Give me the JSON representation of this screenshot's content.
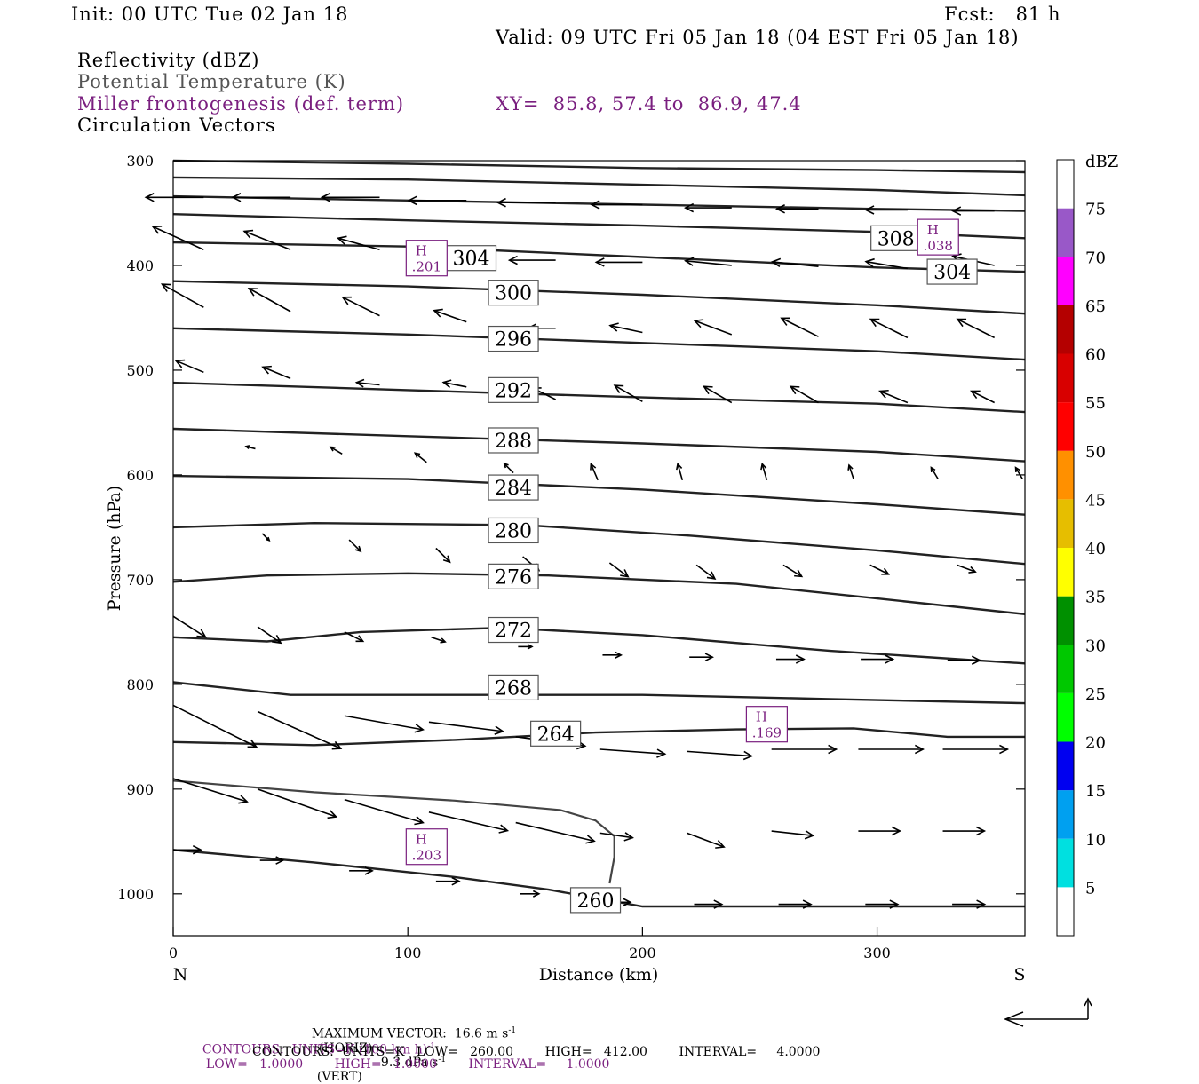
{
  "header": {
    "init": "Init: 00 UTC Tue 02 Jan 18",
    "fcst": "Fcst:   81 h",
    "valid": "Valid: 09 UTC Fri 05 Jan 18 (04 EST Fri 05 Jan 18)",
    "fields": [
      "Reflectivity (dBZ)",
      "Potential Temperature (K)",
      "Miller frontogenesis (def. term)",
      "Circulation Vectors"
    ],
    "xy": "XY=  85.8, 57.4 to  86.9, 47.4"
  },
  "colors": {
    "accent_purple": "#7a1f7f",
    "theta_gray": "#555555"
  },
  "chart_data": {
    "type": "line",
    "title": "",
    "xlabel": "Distance (km)",
    "ylabel": "Pressure (hPa)",
    "x_range": [
      0,
      363
    ],
    "y_range": [
      1040,
      300
    ],
    "y_scale": "linear",
    "x_ticks": [
      0,
      100,
      200,
      300
    ],
    "y_ticks": [
      300,
      400,
      500,
      600,
      700,
      800,
      900,
      1000
    ],
    "x_end_labels": {
      "left": "N",
      "right": "S"
    },
    "grid": false,
    "isentropes": [
      {
        "theta": 260,
        "points": [
          [
            0,
            958
          ],
          [
            60,
            970
          ],
          [
            120,
            984
          ],
          [
            160,
            996
          ],
          [
            200,
            1012
          ],
          [
            240,
            1012
          ],
          [
            300,
            1012
          ],
          [
            363,
            1012
          ]
        ]
      },
      {
        "theta": 264,
        "points": [
          [
            0,
            855
          ],
          [
            60,
            858
          ],
          [
            120,
            853
          ],
          [
            180,
            846
          ],
          [
            240,
            843
          ],
          [
            290,
            842
          ],
          [
            330,
            850
          ],
          [
            363,
            850
          ]
        ]
      },
      {
        "theta": 268,
        "points": [
          [
            0,
            798
          ],
          [
            50,
            810
          ],
          [
            120,
            810
          ],
          [
            200,
            810
          ],
          [
            280,
            814
          ],
          [
            363,
            818
          ]
        ]
      },
      {
        "theta": 272,
        "points": [
          [
            0,
            755
          ],
          [
            40,
            759
          ],
          [
            80,
            750
          ],
          [
            140,
            746
          ],
          [
            200,
            753
          ],
          [
            280,
            768
          ],
          [
            363,
            780
          ]
        ]
      },
      {
        "theta": 276,
        "points": [
          [
            0,
            702
          ],
          [
            40,
            696
          ],
          [
            100,
            694
          ],
          [
            160,
            696
          ],
          [
            240,
            704
          ],
          [
            300,
            718
          ],
          [
            363,
            733
          ]
        ]
      },
      {
        "theta": 280,
        "points": [
          [
            0,
            650
          ],
          [
            60,
            646
          ],
          [
            150,
            648
          ],
          [
            220,
            658
          ],
          [
            300,
            672
          ],
          [
            363,
            685
          ]
        ]
      },
      {
        "theta": 284,
        "points": [
          [
            0,
            601
          ],
          [
            100,
            604
          ],
          [
            200,
            614
          ],
          [
            300,
            628
          ],
          [
            363,
            638
          ]
        ]
      },
      {
        "theta": 288,
        "points": [
          [
            0,
            556
          ],
          [
            100,
            563
          ],
          [
            200,
            570
          ],
          [
            300,
            578
          ],
          [
            363,
            587
          ]
        ]
      },
      {
        "theta": 292,
        "points": [
          [
            0,
            512
          ],
          [
            100,
            519
          ],
          [
            200,
            526
          ],
          [
            300,
            532
          ],
          [
            363,
            540
          ]
        ]
      },
      {
        "theta": 296,
        "points": [
          [
            0,
            460
          ],
          [
            100,
            466
          ],
          [
            200,
            474
          ],
          [
            300,
            482
          ],
          [
            363,
            490
          ]
        ]
      },
      {
        "theta": 300,
        "points": [
          [
            0,
            415
          ],
          [
            100,
            420
          ],
          [
            200,
            428
          ],
          [
            300,
            438
          ],
          [
            363,
            446
          ]
        ]
      },
      {
        "theta": 304,
        "points": [
          [
            0,
            378
          ],
          [
            100,
            382
          ],
          [
            200,
            392
          ],
          [
            300,
            402
          ],
          [
            363,
            406
          ]
        ]
      },
      {
        "theta": 308,
        "points": [
          [
            0,
            351
          ],
          [
            100,
            357
          ],
          [
            200,
            362
          ],
          [
            300,
            368
          ],
          [
            363,
            374
          ]
        ]
      },
      {
        "theta": 312,
        "points": [
          [
            0,
            334
          ],
          [
            100,
            338
          ],
          [
            200,
            342
          ],
          [
            300,
            346
          ],
          [
            363,
            348
          ]
        ]
      },
      {
        "theta": 316,
        "points": [
          [
            0,
            316
          ],
          [
            100,
            318
          ],
          [
            200,
            323
          ],
          [
            300,
            328
          ],
          [
            363,
            333
          ]
        ]
      },
      {
        "theta": 320,
        "points": [
          [
            0,
            300
          ],
          [
            100,
            303
          ],
          [
            200,
            307
          ],
          [
            300,
            309
          ],
          [
            363,
            311
          ]
        ]
      }
    ],
    "isentrope_labels": [
      {
        "text": "260",
        "x": 180,
        "p": 1006
      },
      {
        "text": "264",
        "x": 163,
        "p": 847
      },
      {
        "text": "268",
        "x": 145,
        "p": 803
      },
      {
        "text": "272",
        "x": 145,
        "p": 748
      },
      {
        "text": "276",
        "x": 145,
        "p": 697
      },
      {
        "text": "280",
        "x": 145,
        "p": 653
      },
      {
        "text": "284",
        "x": 145,
        "p": 612
      },
      {
        "text": "288",
        "x": 145,
        "p": 567
      },
      {
        "text": "292",
        "x": 145,
        "p": 519
      },
      {
        "text": "296",
        "x": 145,
        "p": 470
      },
      {
        "text": "300",
        "x": 145,
        "p": 426
      },
      {
        "text": "304",
        "x": 127,
        "p": 393
      },
      {
        "text": "304",
        "x": 332,
        "p": 406
      },
      {
        "text": "308",
        "x": 308,
        "p": 374
      }
    ],
    "frontogenesis_contour": {
      "points": [
        [
          0,
          892
        ],
        [
          60,
          903
        ],
        [
          120,
          911
        ],
        [
          165,
          920
        ],
        [
          180,
          930
        ],
        [
          188,
          945
        ],
        [
          188,
          965
        ],
        [
          186,
          990
        ]
      ]
    },
    "extrema": [
      {
        "label": "H",
        "value": ".201",
        "x": 108,
        "p": 393
      },
      {
        "label": "H",
        "value": ".038",
        "x": 326,
        "p": 373
      },
      {
        "label": "H",
        "value": ".169",
        "x": 253,
        "p": 838
      },
      {
        "label": "H",
        "value": ".203",
        "x": 108,
        "p": 955
      }
    ],
    "vectors": [
      {
        "x": 13,
        "p": 335,
        "dx": -25,
        "dy": 0
      },
      {
        "x": 50,
        "p": 335,
        "dx": -25,
        "dy": 0
      },
      {
        "x": 88,
        "p": 335,
        "dx": -25,
        "dy": 0
      },
      {
        "x": 125,
        "p": 338,
        "dx": -25,
        "dy": 0
      },
      {
        "x": 163,
        "p": 340,
        "dx": -25,
        "dy": 0
      },
      {
        "x": 200,
        "p": 342,
        "dx": -22,
        "dy": 0
      },
      {
        "x": 238,
        "p": 345,
        "dx": -20,
        "dy": 0
      },
      {
        "x": 275,
        "p": 346,
        "dx": -18,
        "dy": 0
      },
      {
        "x": 313,
        "p": 347,
        "dx": -18,
        "dy": 0
      },
      {
        "x": 350,
        "p": 348,
        "dx": -18,
        "dy": 0
      },
      {
        "x": 13,
        "p": 385,
        "dx": -22,
        "dy": -10
      },
      {
        "x": 50,
        "p": 385,
        "dx": -20,
        "dy": -8
      },
      {
        "x": 88,
        "p": 385,
        "dx": -18,
        "dy": -5
      },
      {
        "x": 125,
        "p": 392,
        "dx": -18,
        "dy": -4
      },
      {
        "x": 163,
        "p": 395,
        "dx": -20,
        "dy": 0
      },
      {
        "x": 200,
        "p": 397,
        "dx": -20,
        "dy": 0
      },
      {
        "x": 238,
        "p": 400,
        "dx": -20,
        "dy": -2
      },
      {
        "x": 275,
        "p": 401,
        "dx": -20,
        "dy": -2
      },
      {
        "x": 313,
        "p": 403,
        "dx": -18,
        "dy": -3
      },
      {
        "x": 350,
        "p": 400,
        "dx": -18,
        "dy": -4
      },
      {
        "x": 13,
        "p": 440,
        "dx": -18,
        "dy": -10
      },
      {
        "x": 50,
        "p": 444,
        "dx": -18,
        "dy": -10
      },
      {
        "x": 88,
        "p": 448,
        "dx": -16,
        "dy": -8
      },
      {
        "x": 125,
        "p": 454,
        "dx": -14,
        "dy": -5
      },
      {
        "x": 163,
        "p": 460,
        "dx": -12,
        "dy": 0
      },
      {
        "x": 200,
        "p": 464,
        "dx": -14,
        "dy": -3
      },
      {
        "x": 238,
        "p": 466,
        "dx": -16,
        "dy": -6
      },
      {
        "x": 275,
        "p": 468,
        "dx": -16,
        "dy": -8
      },
      {
        "x": 313,
        "p": 469,
        "dx": -16,
        "dy": -8
      },
      {
        "x": 350,
        "p": 469,
        "dx": -16,
        "dy": -8
      },
      {
        "x": 13,
        "p": 502,
        "dx": -12,
        "dy": -5
      },
      {
        "x": 50,
        "p": 508,
        "dx": -12,
        "dy": -5
      },
      {
        "x": 88,
        "p": 514,
        "dx": -10,
        "dy": -1
      },
      {
        "x": 125,
        "p": 516,
        "dx": -10,
        "dy": -2
      },
      {
        "x": 163,
        "p": 528,
        "dx": -10,
        "dy": -5
      },
      {
        "x": 200,
        "p": 530,
        "dx": -12,
        "dy": -7
      },
      {
        "x": 238,
        "p": 531,
        "dx": -12,
        "dy": -7
      },
      {
        "x": 275,
        "p": 531,
        "dx": -12,
        "dy": -7
      },
      {
        "x": 313,
        "p": 531,
        "dx": -12,
        "dy": -5
      },
      {
        "x": 350,
        "p": 531,
        "dx": -10,
        "dy": -5
      },
      {
        "x": 35,
        "p": 575,
        "dx": -4,
        "dy": -1
      },
      {
        "x": 72,
        "p": 580,
        "dx": -5,
        "dy": -3
      },
      {
        "x": 108,
        "p": 588,
        "dx": -5,
        "dy": -4
      },
      {
        "x": 145,
        "p": 598,
        "dx": -4,
        "dy": -4
      },
      {
        "x": 181,
        "p": 605,
        "dx": -3,
        "dy": -7
      },
      {
        "x": 217,
        "p": 605,
        "dx": -2,
        "dy": -7
      },
      {
        "x": 253,
        "p": 605,
        "dx": -2,
        "dy": -7
      },
      {
        "x": 290,
        "p": 604,
        "dx": -2,
        "dy": -6
      },
      {
        "x": 326,
        "p": 604,
        "dx": -3,
        "dy": -5
      },
      {
        "x": 362,
        "p": 604,
        "dx": -3,
        "dy": -5
      },
      {
        "x": 38,
        "p": 656,
        "dx": 3,
        "dy": 3
      },
      {
        "x": 75,
        "p": 662,
        "dx": 5,
        "dy": 5
      },
      {
        "x": 112,
        "p": 670,
        "dx": 6,
        "dy": 6
      },
      {
        "x": 149,
        "p": 678,
        "dx": 7,
        "dy": 6
      },
      {
        "x": 186,
        "p": 684,
        "dx": 8,
        "dy": 6
      },
      {
        "x": 223,
        "p": 686,
        "dx": 8,
        "dy": 6
      },
      {
        "x": 260,
        "p": 686,
        "dx": 8,
        "dy": 5
      },
      {
        "x": 297,
        "p": 686,
        "dx": 8,
        "dy": 4
      },
      {
        "x": 334,
        "p": 686,
        "dx": 8,
        "dy": 3
      },
      {
        "x": 0,
        "p": 735,
        "dx": 14,
        "dy": 9
      },
      {
        "x": 36,
        "p": 745,
        "dx": 10,
        "dy": 7
      },
      {
        "x": 73,
        "p": 750,
        "dx": 8,
        "dy": 4
      },
      {
        "x": 110,
        "p": 755,
        "dx": 6,
        "dy": 2
      },
      {
        "x": 147,
        "p": 764,
        "dx": 6,
        "dy": 0
      },
      {
        "x": 183,
        "p": 772,
        "dx": 8,
        "dy": 0
      },
      {
        "x": 220,
        "p": 774,
        "dx": 10,
        "dy": 0
      },
      {
        "x": 257,
        "p": 776,
        "dx": 12,
        "dy": 0
      },
      {
        "x": 293,
        "p": 776,
        "dx": 14,
        "dy": 0
      },
      {
        "x": 330,
        "p": 777,
        "dx": 14,
        "dy": 0
      },
      {
        "x": 0,
        "p": 820,
        "dx": 36,
        "dy": 18
      },
      {
        "x": 36,
        "p": 826,
        "dx": 36,
        "dy": 16
      },
      {
        "x": 73,
        "p": 830,
        "dx": 34,
        "dy": 6
      },
      {
        "x": 109,
        "p": 836,
        "dx": 32,
        "dy": 4
      },
      {
        "x": 146,
        "p": 850,
        "dx": 30,
        "dy": 4
      },
      {
        "x": 182,
        "p": 862,
        "dx": 28,
        "dy": 2
      },
      {
        "x": 219,
        "p": 864,
        "dx": 28,
        "dy": 2
      },
      {
        "x": 255,
        "p": 862,
        "dx": 28,
        "dy": 0
      },
      {
        "x": 292,
        "p": 862,
        "dx": 28,
        "dy": 0
      },
      {
        "x": 328,
        "p": 862,
        "dx": 28,
        "dy": 0
      },
      {
        "x": 0,
        "p": 890,
        "dx": 32,
        "dy": 10
      },
      {
        "x": 36,
        "p": 900,
        "dx": 34,
        "dy": 12
      },
      {
        "x": 73,
        "p": 910,
        "dx": 34,
        "dy": 10
      },
      {
        "x": 109,
        "p": 922,
        "dx": 34,
        "dy": 8
      },
      {
        "x": 146,
        "p": 932,
        "dx": 34,
        "dy": 8
      },
      {
        "x": 182,
        "p": 942,
        "dx": 14,
        "dy": 2
      },
      {
        "x": 219,
        "p": 942,
        "dx": 16,
        "dy": 6
      },
      {
        "x": 255,
        "p": 940,
        "dx": 18,
        "dy": 2
      },
      {
        "x": 292,
        "p": 940,
        "dx": 18,
        "dy": 0
      },
      {
        "x": 328,
        "p": 940,
        "dx": 18,
        "dy": 0
      },
      {
        "x": 0,
        "p": 958,
        "dx": 12,
        "dy": 0
      },
      {
        "x": 37,
        "p": 968,
        "dx": 10,
        "dy": 0
      },
      {
        "x": 75,
        "p": 978,
        "dx": 10,
        "dy": 0
      },
      {
        "x": 112,
        "p": 988,
        "dx": 10,
        "dy": 0
      },
      {
        "x": 148,
        "p": 1000,
        "dx": 8,
        "dy": 0
      },
      {
        "x": 185,
        "p": 1008,
        "dx": 10,
        "dy": 0
      },
      {
        "x": 222,
        "p": 1010,
        "dx": 12,
        "dy": 0
      },
      {
        "x": 258,
        "p": 1010,
        "dx": 14,
        "dy": 0
      },
      {
        "x": 295,
        "p": 1010,
        "dx": 14,
        "dy": 0
      },
      {
        "x": 332,
        "p": 1010,
        "dx": 14,
        "dy": 0
      }
    ]
  },
  "colorbar": {
    "units": "dBZ",
    "levels": [
      "5",
      "10",
      "15",
      "20",
      "25",
      "30",
      "35",
      "40",
      "45",
      "50",
      "55",
      "60",
      "65",
      "70",
      "75"
    ],
    "colors": [
      "#00e0e0",
      "#00a0f0",
      "#0000f0",
      "#00ff00",
      "#00c800",
      "#009000",
      "#ffff00",
      "#e6be00",
      "#ff9000",
      "#ff0000",
      "#d80000",
      "#b40000",
      "#ff00ff",
      "#9958c8",
      "#ffffff"
    ]
  },
  "footer": {
    "max_vector": "MAXIMUM VECTOR:  16.6 m s",
    "horiz": "(HORIZ)",
    "vert_val": "9.3 dPa s",
    "vert": "(VERT)",
    "sup": "-1",
    "contours1_a": "CONTOURS:  UNITS=K (100 km h)",
    "contours1_b": "LOW=   1.0000        HIGH=   1.0000        INTERVAL=     1.0000",
    "contours2": "CONTOURS:  UNITS=K   LOW=   260.00        HIGH=   412.00        INTERVAL=     4.0000"
  }
}
